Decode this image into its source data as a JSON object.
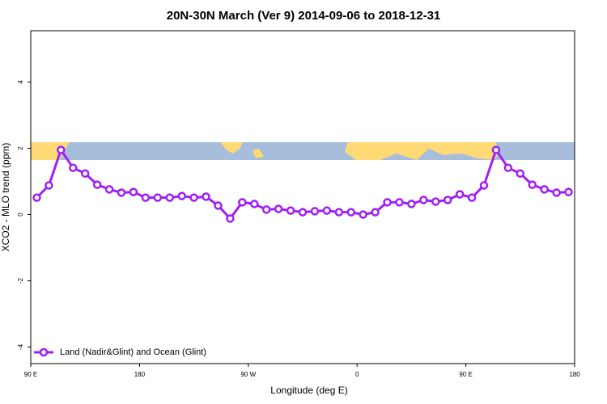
{
  "chart_data": {
    "type": "line",
    "title": "20N-30N March (Ver 9)   2014-09-06 to 2018-12-31",
    "x_label": "Longitude (deg E)",
    "y_label": "XCO2 - MLO trend (ppm)",
    "x": [
      95,
      105,
      115,
      125,
      135,
      145,
      155,
      165,
      175,
      185,
      195,
      205,
      215,
      225,
      235,
      245,
      255,
      265,
      275,
      285,
      295,
      305,
      315,
      325,
      335,
      345,
      355,
      365,
      375,
      385,
      395,
      405,
      415,
      425,
      435,
      445,
      455,
      465,
      475,
      485,
      495,
      505,
      515,
      525,
      535
    ],
    "series": [
      {
        "name": "Land (Nadir&Glint) and Ocean (Glint)",
        "color": "#a020f0",
        "values": [
          0.51,
          0.88,
          1.95,
          1.41,
          1.24,
          0.9,
          0.76,
          0.66,
          0.68,
          0.51,
          0.51,
          0.51,
          0.56,
          0.51,
          0.54,
          0.27,
          -0.12,
          0.37,
          0.32,
          0.15,
          0.17,
          0.12,
          0.07,
          0.1,
          0.12,
          0.07,
          0.07,
          0.0,
          0.07,
          0.37,
          0.37,
          0.32,
          0.44,
          0.39,
          0.44,
          0.61,
          0.51,
          0.88,
          1.95,
          1.41,
          1.24,
          0.9,
          0.76,
          0.66,
          0.68
        ]
      }
    ],
    "xlim": [
      90,
      540
    ],
    "xticks": [
      {
        "value": 90,
        "label": "90 E"
      },
      {
        "value": 180,
        "label": "180"
      },
      {
        "value": 270,
        "label": "90 W"
      },
      {
        "value": 360,
        "label": "0"
      },
      {
        "value": 450,
        "label": "90 E"
      },
      {
        "value": 540,
        "label": "180"
      }
    ],
    "ylim": [
      -4.5,
      5.55
    ],
    "yticks": [
      4,
      2,
      0,
      -2,
      -4
    ],
    "legend": "bottom-left"
  }
}
